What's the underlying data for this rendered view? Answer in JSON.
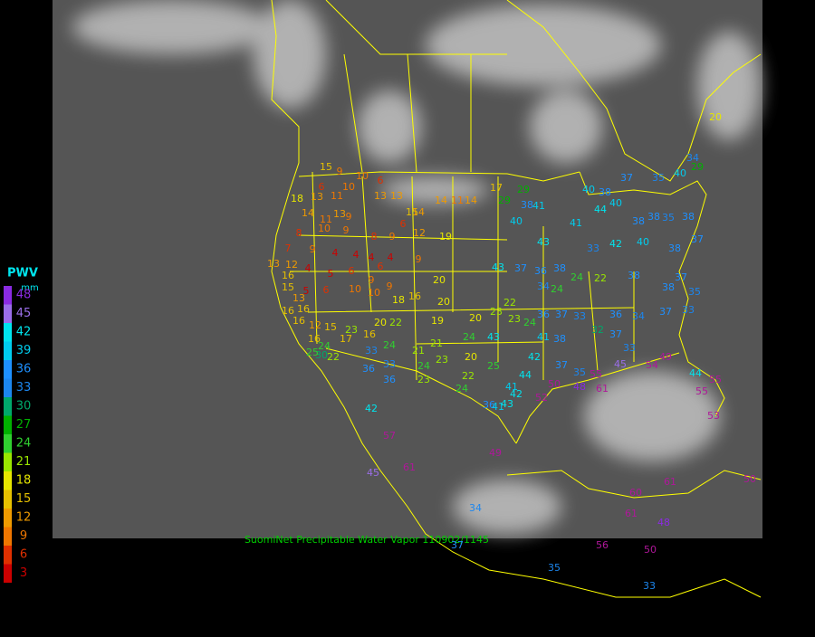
{
  "legend": {
    "title": "PWV",
    "unit": "mm",
    "ticks": [
      48,
      45,
      42,
      39,
      36,
      33,
      30,
      27,
      24,
      21,
      18,
      15,
      12,
      9,
      6,
      3
    ],
    "colors": [
      "#8a2be2",
      "#9a6ee8",
      "#00e5ee",
      "#00cdee",
      "#1e90ff",
      "#1c86ee",
      "#00a86b",
      "#00b000",
      "#30d030",
      "#9ae600",
      "#e6e600",
      "#e6c000",
      "#ee9a00",
      "#ee7600",
      "#e03000",
      "#cc0000"
    ],
    "over_color": "#b0179a"
  },
  "caption": "SuomiNet Precipitable Water Vapor  110902/1145",
  "stations": [
    20,
    15,
    9,
    10,
    6,
    6,
    10,
    13,
    13,
    14,
    11,
    14,
    18,
    13,
    11,
    14,
    13,
    15,
    14,
    11,
    9,
    10,
    9,
    8,
    9,
    8,
    6,
    12,
    19,
    7,
    9,
    4,
    4,
    4,
    6,
    4,
    9,
    13,
    12,
    4,
    5,
    6,
    9,
    9,
    16,
    15,
    13,
    5,
    6,
    10,
    10,
    18,
    16,
    20,
    20,
    16,
    16,
    16,
    12,
    15,
    20,
    22,
    19,
    20,
    23,
    23,
    16,
    17,
    16,
    24,
    30,
    25,
    22,
    24,
    21,
    21,
    20,
    24,
    43,
    24,
    23,
    33,
    36,
    33,
    36,
    23,
    22,
    24,
    25,
    36,
    41,
    42,
    57,
    49,
    61,
    45,
    34,
    17,
    29,
    29,
    38,
    40,
    41,
    41,
    40,
    38,
    37,
    35,
    40,
    34,
    29,
    44,
    40,
    38,
    38,
    35,
    38,
    33,
    42,
    40,
    38,
    37,
    43,
    43,
    37,
    36,
    38,
    34,
    24,
    24,
    22,
    38,
    37,
    38,
    35,
    22,
    23,
    24,
    36,
    37,
    33,
    36,
    34,
    37,
    33,
    41,
    42,
    38,
    32,
    37,
    33,
    37,
    35,
    44,
    41,
    42,
    43,
    52,
    50,
    48,
    55,
    45,
    54,
    49,
    44,
    55,
    55,
    53,
    61,
    60,
    61,
    48,
    50,
    56,
    35,
    33,
    50,
    61,
    37
  ]
}
